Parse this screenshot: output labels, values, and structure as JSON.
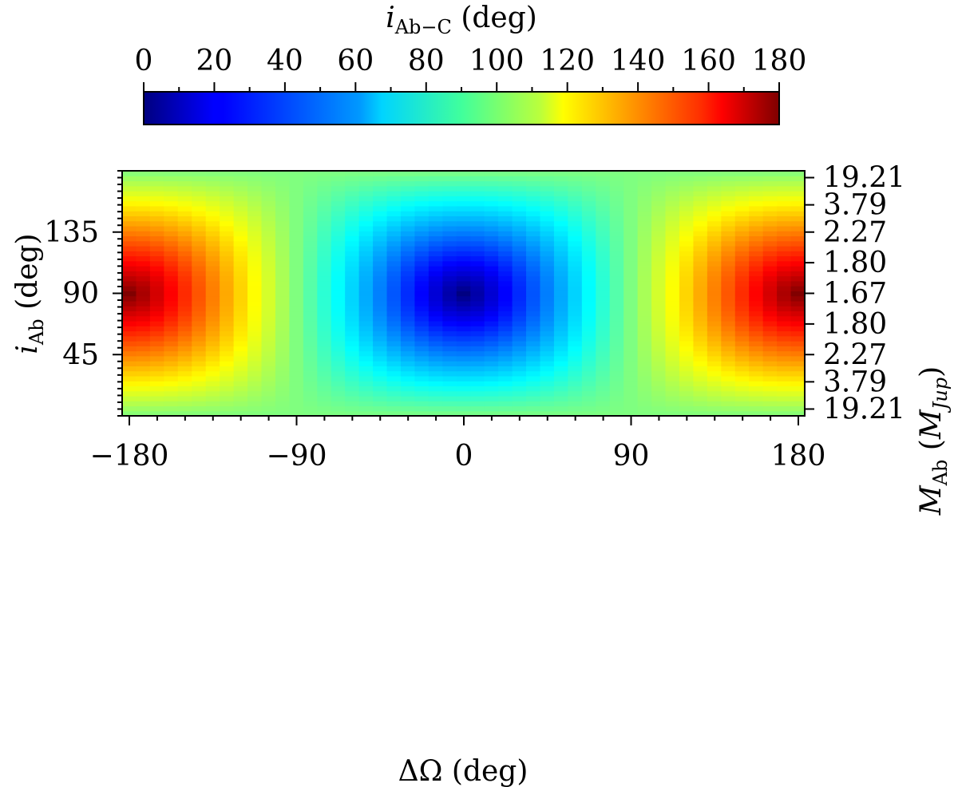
{
  "chart_data": {
    "type": "heatmap",
    "colormap": "jet",
    "x": {
      "label": "ΔΩ (deg)",
      "range": [
        -180,
        180
      ],
      "ticks": [
        "−180",
        "−90",
        "0",
        "90",
        "180"
      ],
      "tick_values": [
        -180,
        -90,
        0,
        90,
        180
      ]
    },
    "y_left": {
      "label_main": "i",
      "label_sub": "Ab",
      "label_tail": " (deg)",
      "range": [
        0,
        180
      ],
      "ticks": [
        "45",
        "90",
        "135"
      ],
      "tick_values": [
        45,
        90,
        135
      ]
    },
    "y_right": {
      "label_main": "M",
      "label_sub": "Ab",
      "label_open": " (",
      "label_unit": "M",
      "label_unit_sub": "Jup",
      "label_close": ")",
      "ticks": [
        "19.21",
        "3.79",
        "2.27",
        "1.80",
        "1.67",
        "1.80",
        "2.27",
        "3.79",
        "19.21"
      ],
      "tick_positions_iAb": [
        175,
        155,
        135,
        112.5,
        90,
        67.5,
        45,
        25,
        5
      ]
    },
    "colorbar": {
      "label_main": "i",
      "label_sub": "Ab−C",
      "label_tail": " (deg)",
      "range": [
        0,
        180
      ],
      "ticks": [
        "0",
        "20",
        "40",
        "60",
        "80",
        "100",
        "120",
        "140",
        "160",
        "180"
      ],
      "tick_values": [
        0,
        20,
        40,
        60,
        80,
        100,
        120,
        140,
        160,
        180
      ]
    },
    "value_function": "i_Ab-C = arccos( sin(i_Ab)·cos(ΔΩ) ) in degrees (i_C = 90°)",
    "grid": {
      "nx": 49,
      "ny": 49
    },
    "extrema": {
      "min": 0,
      "min_at": [
        0,
        90
      ],
      "max": 180,
      "max_at": [
        [
          -180,
          90
        ],
        [
          180,
          90
        ]
      ]
    }
  }
}
